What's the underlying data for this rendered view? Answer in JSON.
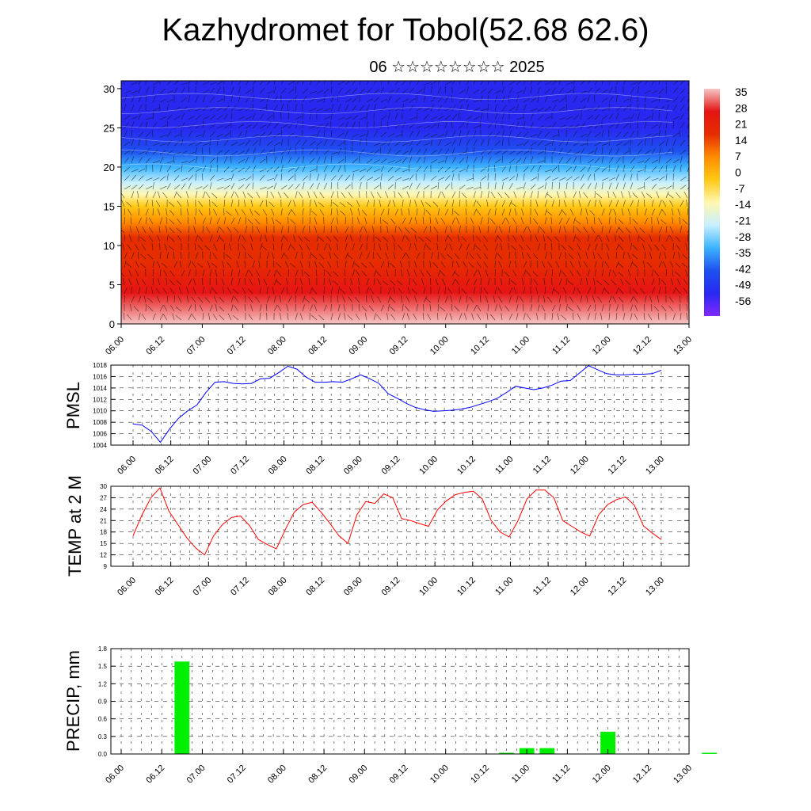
{
  "header": {
    "title": "Kazhydromet for Tobol(52.68 62.6)",
    "subtitle": "06 ☆☆☆☆☆☆☆☆ 2025"
  },
  "chart_data": [
    {
      "type": "heatmap",
      "name": "cross-section",
      "title": "",
      "xlabel": "",
      "ylabel": "",
      "x_tick_labels": [
        "06.00",
        "06.12",
        "07.00",
        "07.12",
        "08.00",
        "08.12",
        "09.00",
        "09.12",
        "10.00",
        "10.12",
        "11.00",
        "11.12",
        "12.00",
        "12.12",
        "13.00"
      ],
      "y_tick_labels": [
        "0",
        "5",
        "10",
        "15",
        "20",
        "25",
        "30"
      ],
      "ylim": [
        0,
        31
      ],
      "colorbar": {
        "labels": [
          "35",
          "28",
          "21",
          "14",
          "7",
          "0",
          "-7",
          "-14",
          "-21",
          "-28",
          "-35",
          "-42",
          "-49",
          "-56"
        ],
        "stops": [
          {
            "value": 38,
            "color": "#f6c7c7"
          },
          {
            "value": 30,
            "color": "#e61414"
          },
          {
            "value": 20,
            "color": "#e62d00"
          },
          {
            "value": 10,
            "color": "#ff8c00"
          },
          {
            "value": 0,
            "color": "#ffc814"
          },
          {
            "value": -9,
            "color": "#fff7b0"
          },
          {
            "value": -16,
            "color": "#c8f0ff"
          },
          {
            "value": -24,
            "color": "#3cb4ff"
          },
          {
            "value": -36,
            "color": "#1e50f0"
          },
          {
            "value": -48,
            "color": "#2828f0"
          },
          {
            "value": -60,
            "color": "#8228ff"
          }
        ]
      },
      "colors": {
        "windbarb": "#111111",
        "contour": "#ffffff"
      }
    },
    {
      "type": "line",
      "name": "pmsl",
      "ylabel": "PMSL",
      "x_tick_labels": [
        "06.00",
        "06.12",
        "07.00",
        "07.12",
        "08.00",
        "08.12",
        "09.00",
        "09.12",
        "10.00",
        "10.12",
        "11.00",
        "11.12",
        "12.00",
        "12.12",
        "13.00"
      ],
      "ylim": [
        1004,
        1018
      ],
      "yticks": [
        1004,
        1006,
        1008,
        1010,
        1012,
        1014,
        1016,
        1018
      ],
      "color": "#0000ff",
      "values": [
        1007.7,
        1007.5,
        1006.4,
        1004.5,
        1006.8,
        1008.7,
        1010.0,
        1011.0,
        1013.2,
        1015.0,
        1015.1,
        1014.8,
        1014.7,
        1014.8,
        1015.6,
        1015.7,
        1016.7,
        1017.8,
        1017.3,
        1015.9,
        1015.0,
        1015.0,
        1015.1,
        1015.0,
        1015.6,
        1016.3,
        1015.6,
        1014.8,
        1013.0,
        1012.2,
        1011.3,
        1010.6,
        1010.2,
        1009.9,
        1010.0,
        1010.1,
        1010.3,
        1010.6,
        1011.1,
        1011.6,
        1012.2,
        1013.2,
        1014.3,
        1014.0,
        1013.7,
        1014.0,
        1014.5,
        1015.2,
        1015.3,
        1016.6,
        1017.9,
        1017.2,
        1016.5,
        1016.3,
        1016.3,
        1016.4,
        1016.4,
        1016.5,
        1017.1
      ]
    },
    {
      "type": "line",
      "name": "temp-2m",
      "ylabel": "TEMP at 2 M",
      "x_tick_labels": [
        "06.00",
        "06.12",
        "07.00",
        "07.12",
        "08.00",
        "08.12",
        "09.00",
        "09.12",
        "10.00",
        "10.12",
        "11.00",
        "11.12",
        "12.00",
        "12.12",
        "13.00"
      ],
      "ylim": [
        9,
        30
      ],
      "yticks": [
        9,
        12,
        15,
        18,
        21,
        24,
        27,
        30
      ],
      "color": "#ff0000",
      "values": [
        17,
        22.5,
        27,
        29.6,
        23.5,
        20,
        16.5,
        13.8,
        12,
        17,
        20,
        21.8,
        22.2,
        19.7,
        16,
        14.7,
        13.6,
        18.6,
        23.2,
        25.2,
        25.8,
        23.2,
        20.2,
        17,
        15,
        22.5,
        26,
        25.5,
        28,
        27,
        21.5,
        21,
        20.2,
        19.5,
        23.8,
        26.2,
        27.8,
        28.4,
        28.7,
        26.7,
        21,
        18,
        16.7,
        21,
        26.7,
        29,
        29,
        27,
        21,
        19.5,
        18,
        16.9,
        22.5,
        25.2,
        26.5,
        27.2,
        25,
        19.6,
        17.7,
        16
      ]
    },
    {
      "type": "bar",
      "name": "precip",
      "ylabel": "PRECIP, mm",
      "x_tick_labels": [
        "06.00",
        "06.12",
        "07.00",
        "07.12",
        "08.00",
        "08.12",
        "09.00",
        "09.12",
        "10.00",
        "10.12",
        "11.00",
        "11.12",
        "12.00",
        "12.12",
        "13.00"
      ],
      "ylim": [
        0,
        1.8
      ],
      "ytick_labels": [
        "0.0",
        "0.3",
        "0.6",
        "0.9",
        "1.2",
        "1.5",
        "1.8"
      ],
      "color": "#00ee00",
      "bars": [
        {
          "x": 9,
          "value": 1.58
        },
        {
          "x": 57,
          "value": 0.02
        },
        {
          "x": 60,
          "value": 0.1
        },
        {
          "x": 63,
          "value": 0.1
        },
        {
          "x": 72,
          "value": 0.38
        },
        {
          "x": 87,
          "value": 0.02
        }
      ]
    }
  ]
}
